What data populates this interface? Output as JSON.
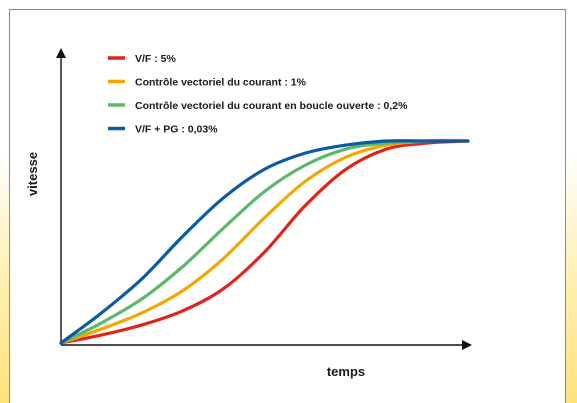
{
  "chart_data": {
    "type": "line",
    "title": "",
    "xlabel": "temps",
    "ylabel": "vitesse",
    "xlim": [
      0,
      1
    ],
    "ylim": [
      0,
      1
    ],
    "grid": false,
    "legend_placement": "top-left",
    "axis_ticks": false,
    "series": [
      {
        "name": "V/F : 5%",
        "color": "#e2231a",
        "x": [
          0,
          0.1,
          0.2,
          0.3,
          0.4,
          0.5,
          0.6,
          0.7,
          0.8,
          0.9,
          1.0
        ],
        "y": [
          0,
          0.04,
          0.09,
          0.16,
          0.27,
          0.45,
          0.68,
          0.86,
          0.96,
          0.99,
          1.0
        ]
      },
      {
        "name": "Contrôle vectoriel du courant : 1%",
        "color": "#f5a600",
        "x": [
          0,
          0.1,
          0.2,
          0.3,
          0.4,
          0.5,
          0.6,
          0.7,
          0.8,
          0.9,
          1.0
        ],
        "y": [
          0,
          0.07,
          0.15,
          0.26,
          0.42,
          0.62,
          0.8,
          0.92,
          0.98,
          1.0,
          1.0
        ]
      },
      {
        "name": "Contrôle vectoriel du courant en boucle ouverte : 0,2%",
        "color": "#5cb86a",
        "x": [
          0,
          0.1,
          0.2,
          0.3,
          0.4,
          0.5,
          0.6,
          0.7,
          0.8,
          0.9,
          1.0
        ],
        "y": [
          0,
          0.1,
          0.22,
          0.38,
          0.57,
          0.75,
          0.88,
          0.96,
          0.99,
          1.0,
          1.0
        ]
      },
      {
        "name": "V/F + PG : 0,03%",
        "color": "#0b5aa5",
        "x": [
          0,
          0.1,
          0.2,
          0.3,
          0.4,
          0.5,
          0.6,
          0.7,
          0.8,
          0.9,
          1.0
        ],
        "y": [
          0,
          0.15,
          0.32,
          0.53,
          0.72,
          0.86,
          0.94,
          0.98,
          1.0,
          1.0,
          1.0
        ]
      }
    ]
  }
}
